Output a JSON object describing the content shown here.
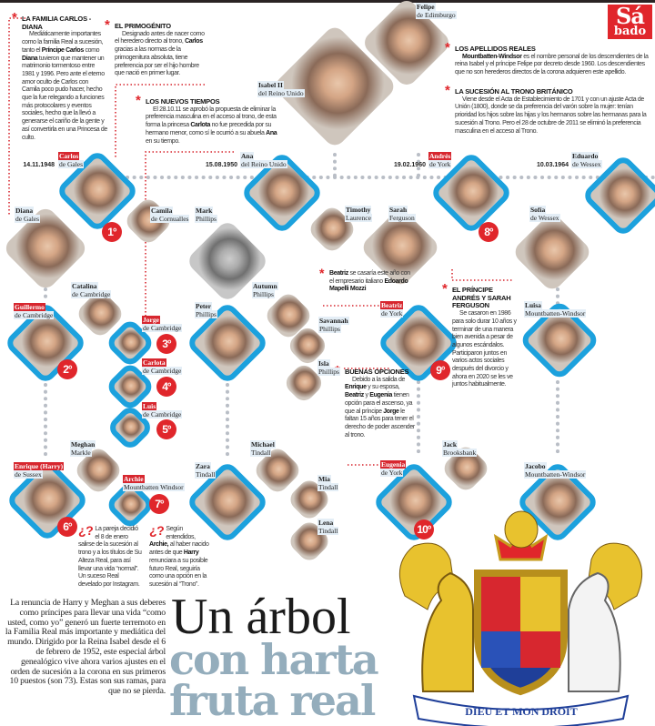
{
  "logo": {
    "line1": "Sá",
    "line2": "bado"
  },
  "headline": {
    "line1": "Un árbol",
    "line2": "con harta",
    "line3": "fruta real"
  },
  "intro": "La renuncia de Harry y Meghan a sus deberes como príncipes para llevar una vida “como usted, como yo” generó un fuerte terremoto en la Familia Real más importante y mediática del mundo. Dirigido por la Reina Isabel desde el 6 de febrero de 1952, este especial árbol genealógico vive ahora varios ajustes en el orden de sucesión a la corona en sus primeros 10 puestos (son 73). Estas son sus ramas, para que no se pierda.",
  "dates": {
    "carlos": "14.11.1948",
    "ana": "15.08.1950",
    "andres": "19.02.1960",
    "eduardo": "10.03.1964"
  },
  "colors": {
    "accent_red": "#e0262b",
    "heir_blue": "#1ca1dd",
    "headline_gray": "#94adbc"
  },
  "notes": {
    "familia": {
      "title": "LA FAMILIA CARLOS - DIANA",
      "body": [
        [
          "Mediáticamente importantes como la familia Real a sucesión, tanto el ",
          0
        ],
        [
          "Príncipe Carlos",
          1
        ],
        [
          " como ",
          0
        ],
        [
          "Diana",
          1
        ],
        [
          " tuvieron que mantener un matrimonio tormentoso entre 1981 y 1996. Pero ante el eterno amor oculto de Carlos con Camila poco pudo hacer, hecho que la fue relegando a funciones más protocolares y eventos sociales, hecho que la llevó a generarse el cariño de la gente y así convertirla en una Princesa de culto.",
          0
        ]
      ]
    },
    "primogenito": {
      "title": "EL PRIMOGÉNITO",
      "body": [
        [
          "Designado antes de nacer como el heredero directo al trono, ",
          0
        ],
        [
          "Carlos",
          1
        ],
        [
          " gracias a las normas de la primogenitura absoluta, tiene preferencia por ser el hijo hombre que nació en primer lugar.",
          0
        ]
      ]
    },
    "nuevos": {
      "title": "LOS NUEVOS TIEMPOS",
      "body": [
        [
          "El 28.10.11 se aprobó la propuesta de eliminar la preferencia masculina en el acceso al trono, de esta forma la princesa ",
          0
        ],
        [
          "Carlota",
          1
        ],
        [
          " no fue precedida por su hermano menor, como sí le ocurrió a su abuela ",
          0
        ],
        [
          "Ana",
          1
        ],
        [
          " en su tiempo.",
          0
        ]
      ]
    },
    "apellidos": {
      "title": "LOS APELLIDOS REALES",
      "body": [
        [
          "Mountbatten-Windsor",
          1
        ],
        [
          " es el nombre personal de los descendientes de la reina Isabel y el príncipe Felipe por decreto desde 1960. Los descendientes que no son herederos directos de la corona adquieren este apellido.",
          0
        ]
      ]
    },
    "sucesion": {
      "title": "LA SUCESIÓN AL TRONO BRITÁNICO",
      "body": [
        [
          "Viene desde el Acta de Establecimiento de 1701 y con un ajuste Acta de Unión (1800), donde se da preferencia del varón sobre la mujer: tenían prioridad los hijos sobre las hijas y los hermanos sobre las hermanas para la sucesión al Trono. Pero el 28 de octubre de 2011 se eliminó la preferencia masculina en el acceso al Trono.",
          0
        ]
      ]
    },
    "beatriz": {
      "title": "",
      "body": [
        [
          "Beatriz",
          1
        ],
        [
          " se casaría este año con el empresario italiano ",
          0
        ],
        [
          "Edoardo Mapelli Mozzi",
          1
        ]
      ]
    },
    "andres": {
      "title": "EL PRÍNCIPE ANDRÉS Y SARAH FERGUSON",
      "body": [
        [
          "Se casaron en 1986 para solo durar 10 años y terminar de una manera bien avenida a pesar de algunos escándalos. Participaron juntos en varios actos sociales después del divorcio y ahora en 2020 se les ve juntos habitualmente.",
          0
        ]
      ]
    },
    "buenas": {
      "title": "BUENAS OPCIONES",
      "body": [
        [
          "Debido a la salida de ",
          0
        ],
        [
          "Enrique",
          1
        ],
        [
          " y su esposa, ",
          0
        ],
        [
          "Beatriz",
          1
        ],
        [
          " y ",
          0
        ],
        [
          "Eugenia",
          1
        ],
        [
          " tienen opción para el ascenso, ya que al príncipe ",
          0
        ],
        [
          "Jorge",
          1
        ],
        [
          " le faltan 15 años para tener el derecho de poder ascender al trono.",
          0
        ]
      ]
    },
    "harry": {
      "mark": "¿?",
      "body": [
        [
          "La pareja decidió el 8 de enero salirse de la sucesión al trono y a los títulos de Su Alteza Real, para así llevar una vida “normal”. Un suceso Real develado por Instagram.",
          0
        ]
      ]
    },
    "archie": {
      "mark": "¿?",
      "body": [
        [
          "Según entendidos, ",
          0
        ],
        [
          "Archie,",
          1
        ],
        [
          " al haber nacido antes de que ",
          0
        ],
        [
          "Harry",
          1
        ],
        [
          " renunciara a su posible futuro Real, seguiría como una opción en la sucesión al “Trono”.",
          0
        ]
      ]
    }
  },
  "people": [
    {
      "id": "felipe",
      "first": "Felipe",
      "last": "de Edimburgo"
    },
    {
      "id": "isabel",
      "first": "Isabel II",
      "last": "del Reino Unido"
    },
    {
      "id": "carlos",
      "first": "Carlos",
      "last": "de Gales",
      "rank": "1°",
      "heir": true
    },
    {
      "id": "ana",
      "first": "Ana",
      "last": "del Reino Unido",
      "heir": true
    },
    {
      "id": "andres",
      "first": "Andrés",
      "last": "de York",
      "rank": "8°",
      "heir": true
    },
    {
      "id": "eduardo",
      "first": "Eduardo",
      "last": "de Wessex",
      "heir": true
    },
    {
      "id": "diana",
      "first": "Diana",
      "last": "de Gales"
    },
    {
      "id": "camila",
      "first": "Camila",
      "last": "de Cornualles"
    },
    {
      "id": "mark",
      "first": "Mark",
      "last": "Phillips"
    },
    {
      "id": "timothy",
      "first": "Timothy",
      "last": "Laurence"
    },
    {
      "id": "sarah",
      "first": "Sarah",
      "last": "Ferguson"
    },
    {
      "id": "sofia",
      "first": "Sofía",
      "last": "de Wessex"
    },
    {
      "id": "catalina",
      "first": "Catalina",
      "last": "de Cambridge"
    },
    {
      "id": "guillermo",
      "first": "Guillermo",
      "last": "de Cambridge",
      "rank": "2°",
      "heir": true
    },
    {
      "id": "peter",
      "first": "Peter",
      "last": "Phillips",
      "heir": true
    },
    {
      "id": "autumn",
      "first": "Autumn",
      "last": "Phillips"
    },
    {
      "id": "savannah",
      "first": "Savannah",
      "last": "Phillips"
    },
    {
      "id": "isla",
      "first": "Isla",
      "last": "Phillips"
    },
    {
      "id": "jorge",
      "first": "Jorge",
      "last": "de Cambridge",
      "rank": "3°",
      "heir": true
    },
    {
      "id": "carlota",
      "first": "Carlota",
      "last": "de Cambridge",
      "rank": "4°",
      "heir": true
    },
    {
      "id": "luis",
      "first": "Luis",
      "last": "de Cambridge",
      "rank": "5°",
      "heir": true
    },
    {
      "id": "beatriz",
      "first": "Beatriz",
      "last": "de York",
      "rank": "9°",
      "heir": true
    },
    {
      "id": "luisa",
      "first": "Luisa",
      "last": "Mountbatten-Windsor",
      "heir": true
    },
    {
      "id": "meghan",
      "first": "Meghan",
      "last": "Markle"
    },
    {
      "id": "enrique",
      "first": "Enrique (Harry)",
      "last": "de Sussex",
      "rank": "6°",
      "heir": true
    },
    {
      "id": "archie",
      "first": "Archie",
      "last": "Mountbatten Windsor",
      "rank": "7°",
      "heir": true
    },
    {
      "id": "zara",
      "first": "Zara",
      "last": "Tindall",
      "heir": true
    },
    {
      "id": "michael",
      "first": "Michael",
      "last": "Tindall"
    },
    {
      "id": "mia",
      "first": "Mia",
      "last": "Tindall"
    },
    {
      "id": "lena",
      "first": "Lena",
      "last": "Tindall"
    },
    {
      "id": "eugenia",
      "first": "Eugenia",
      "last": "de York",
      "rank": "10°",
      "heir": true
    },
    {
      "id": "jack",
      "first": "Jack",
      "last": "Brooksbank"
    },
    {
      "id": "jacobo",
      "first": "Jacobo",
      "last": "Mountbatten-Windsor",
      "heir": true
    }
  ],
  "coat_of_arms": {
    "motto": "DIEU ET MON DROIT"
  }
}
